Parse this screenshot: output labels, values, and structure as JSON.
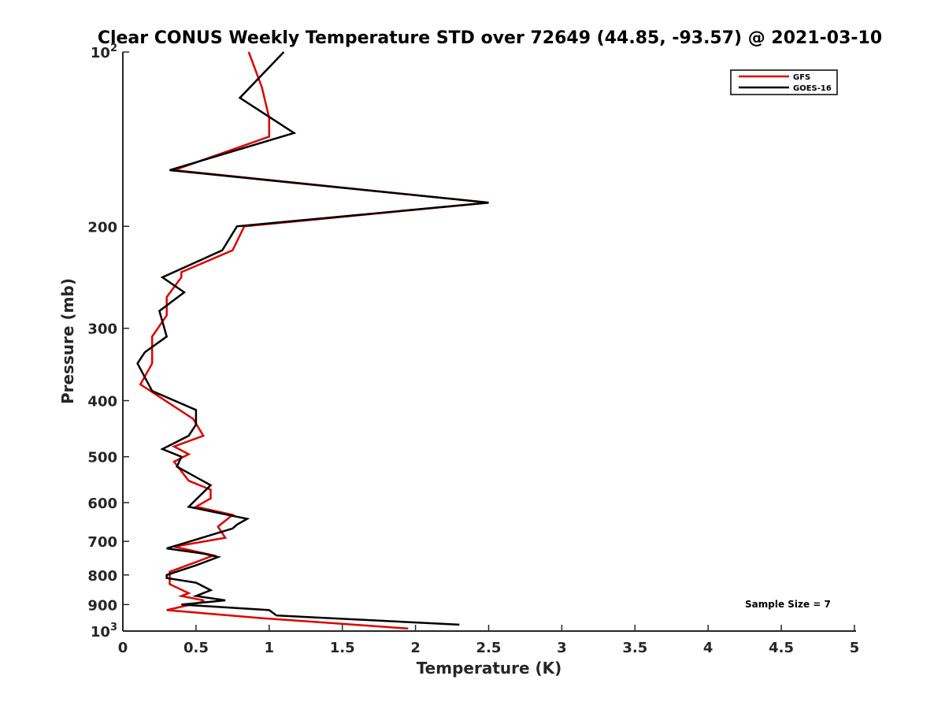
{
  "chart_data": {
    "type": "line",
    "title": "Clear CONUS Weekly Temperature STD over 72649 (44.85, -93.57) @ 2021-03-10",
    "xlabel": "Temperature (K)",
    "ylabel": "Pressure (mb)",
    "xlim": [
      0,
      5
    ],
    "ylim": [
      100,
      1000
    ],
    "y_scale": "log",
    "y_reversed": true,
    "grid": false,
    "legend_position": "top-right",
    "x_ticks": [
      "0",
      "0.5",
      "1",
      "1.5",
      "2",
      "2.5",
      "3",
      "3.5",
      "4",
      "4.5",
      "5"
    ],
    "y_ticks": [
      {
        "value": 100,
        "base": "10",
        "exp": "2"
      },
      {
        "value": 200,
        "label": "200"
      },
      {
        "value": 300,
        "label": "300"
      },
      {
        "value": 400,
        "label": "400"
      },
      {
        "value": 500,
        "label": "500"
      },
      {
        "value": 600,
        "label": "600"
      },
      {
        "value": 700,
        "label": "700"
      },
      {
        "value": 800,
        "label": "800"
      },
      {
        "value": 900,
        "label": "900"
      },
      {
        "value": 1000,
        "base": "10",
        "exp": "3"
      }
    ],
    "annotation": "Sample Size = 7",
    "series": [
      {
        "name": "GFS",
        "color": "#e00000",
        "points": [
          [
            0.86,
            100
          ],
          [
            0.95,
            115
          ],
          [
            1.0,
            130
          ],
          [
            1.0,
            140
          ],
          [
            0.35,
            160
          ],
          [
            2.5,
            182
          ],
          [
            0.83,
            200
          ],
          [
            0.75,
            220
          ],
          [
            0.4,
            240
          ],
          [
            0.4,
            245
          ],
          [
            0.3,
            265
          ],
          [
            0.3,
            285
          ],
          [
            0.2,
            310
          ],
          [
            0.2,
            325
          ],
          [
            0.2,
            345
          ],
          [
            0.12,
            375
          ],
          [
            0.48,
            430
          ],
          [
            0.55,
            460
          ],
          [
            0.35,
            480
          ],
          [
            0.45,
            495
          ],
          [
            0.35,
            510
          ],
          [
            0.45,
            550
          ],
          [
            0.6,
            570
          ],
          [
            0.6,
            590
          ],
          [
            0.5,
            610
          ],
          [
            0.75,
            630
          ],
          [
            0.65,
            660
          ],
          [
            0.7,
            690
          ],
          [
            0.35,
            715
          ],
          [
            0.62,
            740
          ],
          [
            0.5,
            760
          ],
          [
            0.32,
            790
          ],
          [
            0.32,
            830
          ],
          [
            0.45,
            860
          ],
          [
            0.4,
            870
          ],
          [
            0.55,
            885
          ],
          [
            0.55,
            890
          ],
          [
            0.3,
            920
          ],
          [
            0.95,
            950
          ],
          [
            1.95,
            990
          ]
        ]
      },
      {
        "name": "GOES-16",
        "color": "#000000",
        "points": [
          [
            1.1,
            100
          ],
          [
            0.8,
            120
          ],
          [
            1.17,
            138
          ],
          [
            0.32,
            160
          ],
          [
            2.5,
            182
          ],
          [
            0.78,
            200
          ],
          [
            0.68,
            220
          ],
          [
            0.27,
            245
          ],
          [
            0.42,
            260
          ],
          [
            0.25,
            280
          ],
          [
            0.3,
            310
          ],
          [
            0.15,
            330
          ],
          [
            0.1,
            345
          ],
          [
            0.2,
            385
          ],
          [
            0.5,
            415
          ],
          [
            0.5,
            440
          ],
          [
            0.45,
            460
          ],
          [
            0.27,
            485
          ],
          [
            0.4,
            500
          ],
          [
            0.37,
            520
          ],
          [
            0.6,
            560
          ],
          [
            0.45,
            610
          ],
          [
            0.85,
            640
          ],
          [
            0.78,
            655
          ],
          [
            0.75,
            665
          ],
          [
            0.3,
            720
          ],
          [
            0.55,
            735
          ],
          [
            0.65,
            745
          ],
          [
            0.5,
            770
          ],
          [
            0.3,
            800
          ],
          [
            0.3,
            810
          ],
          [
            0.5,
            825
          ],
          [
            0.6,
            850
          ],
          [
            0.5,
            870
          ],
          [
            0.7,
            885
          ],
          [
            0.4,
            900
          ],
          [
            1.0,
            920
          ],
          [
            1.05,
            940
          ],
          [
            2.3,
            975
          ]
        ]
      }
    ]
  }
}
